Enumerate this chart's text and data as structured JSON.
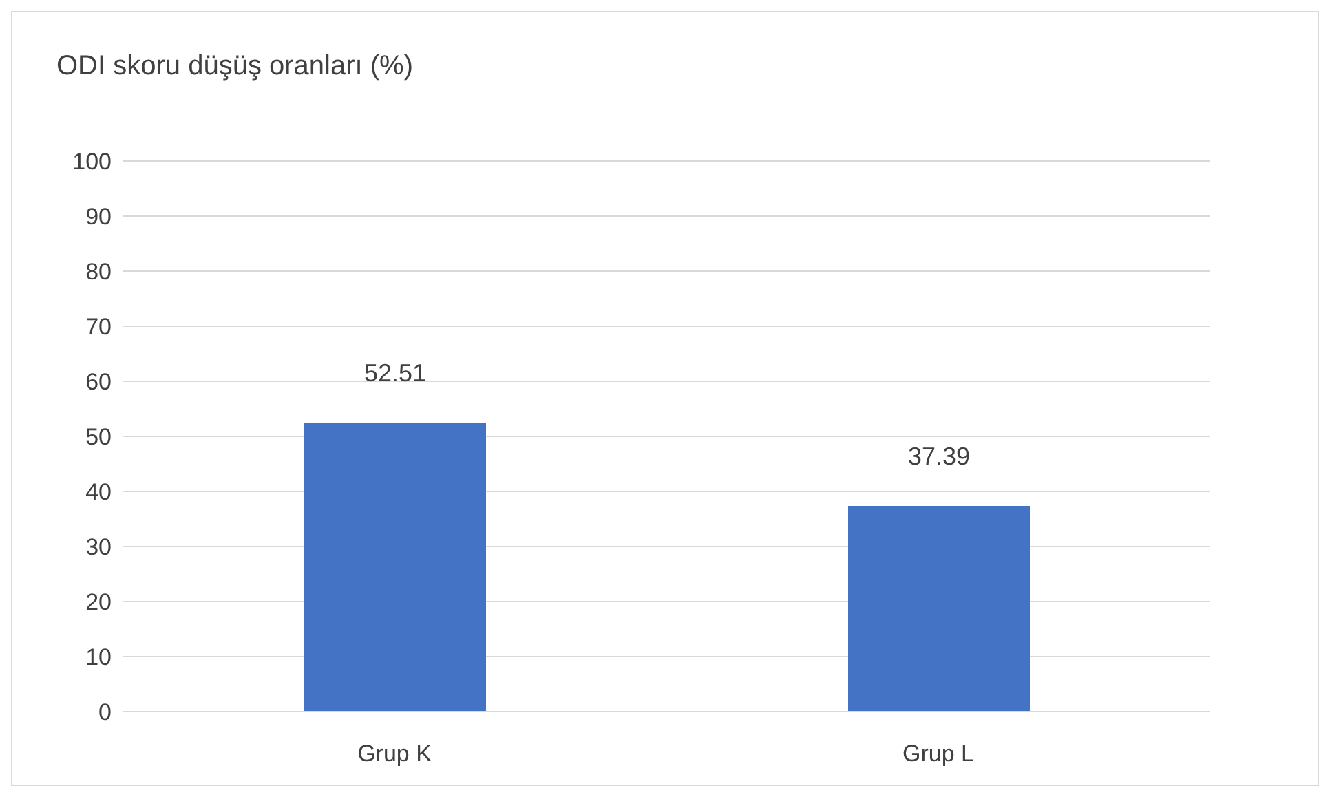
{
  "chart_data": {
    "type": "bar",
    "title": "ODI skoru düşüş oranları (%)",
    "categories": [
      "Grup K",
      "Grup L"
    ],
    "values": [
      52.51,
      37.39
    ],
    "color": "#4472c4",
    "ylim": [
      0,
      100
    ],
    "yticks": [
      0,
      10,
      20,
      30,
      40,
      50,
      60,
      70,
      80,
      90,
      100
    ],
    "grid": "y",
    "data_labels": true
  }
}
